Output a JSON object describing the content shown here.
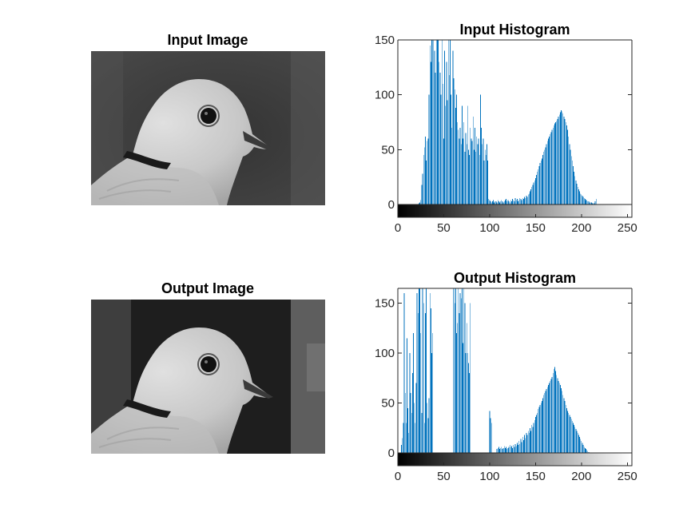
{
  "figure": {
    "image_panels": [
      {
        "title": "Input Image"
      },
      {
        "title": "Output Image"
      }
    ]
  },
  "chart_data": [
    {
      "type": "bar",
      "title": "Input Histogram",
      "xlabel": "",
      "ylabel": "",
      "xlim": [
        0,
        255
      ],
      "ylim": [
        0,
        150
      ],
      "xticks": [
        0,
        50,
        100,
        150,
        200,
        250
      ],
      "yticks": [
        0,
        50,
        100,
        150
      ],
      "colorbar": "grayscale 0-255",
      "grid": false,
      "bar_color": "#0072BD",
      "series": [
        {
          "x_start": 0,
          "values": [
            0,
            0,
            0,
            0,
            0,
            0,
            0,
            0,
            0,
            0,
            0,
            0,
            0,
            0,
            0,
            0,
            0,
            0,
            0,
            0,
            0,
            0,
            0,
            1,
            2,
            4,
            18,
            28,
            45,
            52,
            62,
            40,
            58,
            60,
            100,
            145,
            130,
            160,
            170,
            155,
            140,
            120,
            175,
            150,
            150,
            130,
            120,
            100,
            160,
            110,
            60,
            140,
            90,
            130,
            95,
            160,
            118,
            150,
            100,
            70,
            140,
            115,
            105,
            88,
            100,
            75,
            68,
            60,
            70,
            55,
            90,
            60,
            75,
            48,
            65,
            55,
            90,
            50,
            45,
            70,
            60,
            58,
            80,
            50,
            70,
            48,
            62,
            55,
            60,
            45,
            100,
            70,
            55,
            60,
            40,
            50,
            45,
            55,
            40,
            5,
            4,
            3,
            2,
            3,
            4,
            2,
            3,
            3,
            2,
            4,
            3,
            2,
            3,
            4,
            3,
            2,
            3,
            4,
            5,
            3,
            4,
            3,
            2,
            4,
            3,
            5,
            4,
            3,
            6,
            4,
            5,
            3,
            4,
            6,
            5,
            4,
            6,
            5,
            7,
            6,
            8,
            7,
            9,
            10,
            12,
            14,
            16,
            18,
            20,
            22,
            24,
            27,
            30,
            32,
            35,
            38,
            40,
            42,
            45,
            48,
            50,
            52,
            55,
            58,
            60,
            62,
            64,
            66,
            68,
            70,
            72,
            74,
            75,
            76,
            78,
            80,
            82,
            84,
            86,
            85,
            83,
            80,
            78,
            75,
            72,
            68,
            62,
            55,
            50,
            44,
            40,
            35,
            30,
            26,
            22,
            19,
            16,
            14,
            12,
            10,
            9,
            8,
            7,
            6,
            5,
            4,
            4,
            3,
            3,
            2,
            2,
            2,
            1,
            1,
            1,
            3,
            5
          ]
        }
      ]
    },
    {
      "type": "bar",
      "title": "Output Histogram",
      "xlabel": "",
      "ylabel": "",
      "xlim": [
        0,
        255
      ],
      "ylim": [
        0,
        165
      ],
      "xticks": [
        0,
        50,
        100,
        150,
        200,
        250
      ],
      "yticks": [
        0,
        50,
        100,
        150
      ],
      "colorbar": "grayscale 0-255",
      "grid": false,
      "bar_color": "#0072BD",
      "series": [
        {
          "x_start": 0,
          "values": [
            0,
            0,
            0,
            0,
            8,
            15,
            30,
            160,
            60,
            30,
            115,
            45,
            20,
            100,
            60,
            40,
            80,
            120,
            50,
            30,
            70,
            160,
            140,
            165,
            165,
            120,
            40,
            165,
            150,
            30,
            140,
            165,
            50,
            35,
            55,
            160,
            145,
            100,
            120,
            0,
            0,
            0,
            0,
            0,
            0,
            0,
            0,
            0,
            0,
            0,
            0,
            0,
            0,
            0,
            0,
            0,
            0,
            0,
            0,
            0,
            0,
            165,
            150,
            165,
            120,
            130,
            165,
            140,
            160,
            155,
            165,
            110,
            165,
            150,
            100,
            130,
            100,
            90,
            80,
            150,
            0,
            0,
            0,
            0,
            0,
            0,
            0,
            0,
            0,
            0,
            0,
            0,
            0,
            0,
            0,
            0,
            0,
            0,
            0,
            0,
            42,
            35,
            30,
            0,
            0,
            0,
            0,
            0,
            4,
            5,
            6,
            4,
            5,
            6,
            4,
            5,
            7,
            5,
            6,
            4,
            5,
            6,
            8,
            6,
            7,
            5,
            8,
            6,
            9,
            7,
            10,
            8,
            12,
            9,
            14,
            11,
            16,
            13,
            18,
            15,
            20,
            18,
            22,
            20,
            25,
            22,
            28,
            26,
            30,
            33,
            36,
            38,
            40,
            44,
            46,
            48,
            50,
            52,
            55,
            58,
            60,
            62,
            64,
            66,
            68,
            70,
            72,
            74,
            76,
            80,
            84,
            86,
            82,
            78,
            75,
            72,
            70,
            68,
            65,
            62,
            58,
            55,
            52,
            48,
            45,
            42,
            40,
            38,
            36,
            34,
            32,
            30,
            28,
            26,
            24,
            22,
            20,
            18,
            16,
            14,
            12,
            10,
            8,
            6,
            5,
            4,
            3,
            2,
            1,
            0,
            0,
            0,
            0,
            0,
            0,
            0,
            0,
            0,
            0,
            0,
            0,
            0,
            0
          ]
        }
      ]
    }
  ]
}
